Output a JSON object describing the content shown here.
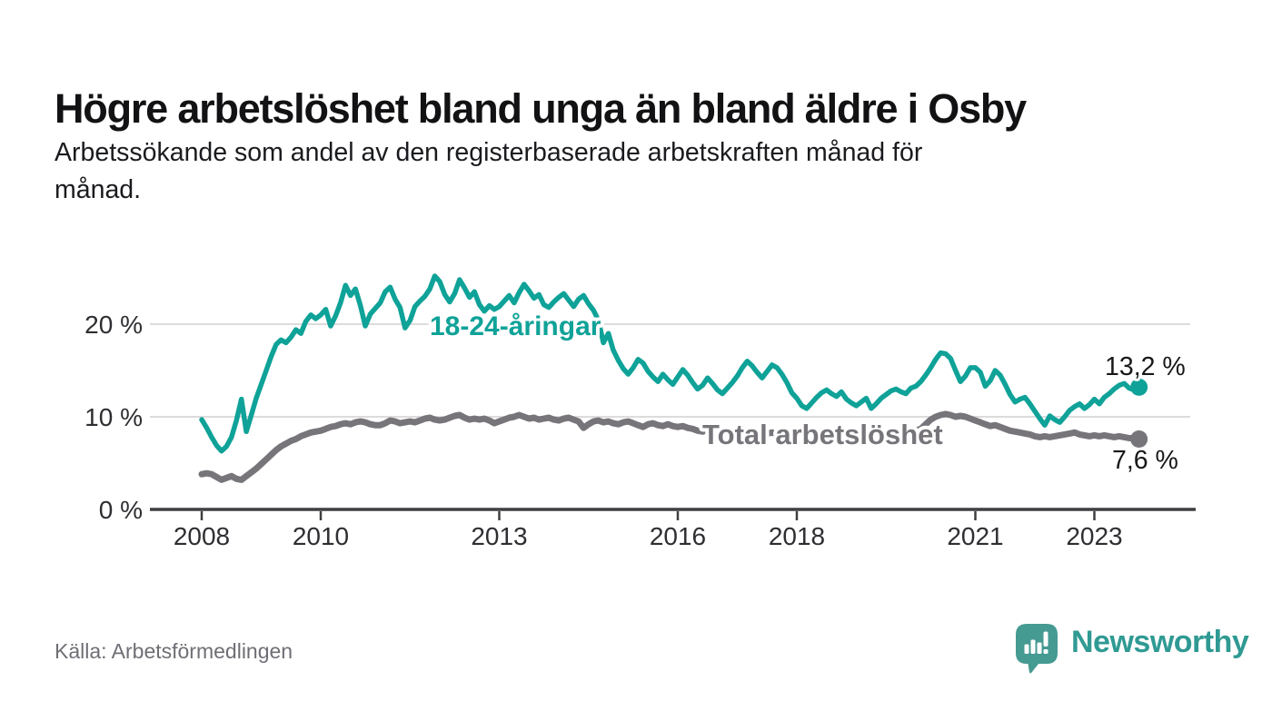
{
  "title": "Högre arbetslöshet bland unga än bland äldre i Osby",
  "subtitle_lines": [
    "Arbetssökande som andel av den registerbaserade arbetskraften månad för",
    "månad."
  ],
  "source": "Källa: Arbetsförmedlingen",
  "logo": {
    "brand": "Newsworthy"
  },
  "colors": {
    "young": "#0fa298",
    "total": "#77757a",
    "grid": "#dcdcdc",
    "axis": "#3f3f42",
    "tick_label": "#2e2e32",
    "value_label": "#17181a",
    "logo_bubble": "#459a92",
    "logo_text": "#2f9a93",
    "background": "#ffffff"
  },
  "chart_data": {
    "type": "line",
    "title": "Högre arbetslöshet bland unga än bland äldre i Osby",
    "subtitle": "Arbetssökande som andel av den registerbaserade arbetskraften månad för månad.",
    "x_start_year": 2008,
    "x_start_month": 1,
    "x_step_months": 1,
    "x_end_year": 2023,
    "x_end_month": 10,
    "ylim": [
      0,
      26.5
    ],
    "grid": "horizontal-only",
    "legend_position": "inline-labels",
    "yticks": [
      {
        "value": 0,
        "label": "0 %"
      },
      {
        "value": 10,
        "label": "10 %"
      },
      {
        "value": 20,
        "label": "20 %"
      }
    ],
    "xticks": [
      {
        "year": 2008,
        "label": "2008"
      },
      {
        "year": 2010,
        "label": "2010"
      },
      {
        "year": 2013,
        "label": "2013"
      },
      {
        "year": 2016,
        "label": "2016"
      },
      {
        "year": 2018,
        "label": "2018"
      },
      {
        "year": 2021,
        "label": "2021"
      },
      {
        "year": 2023,
        "label": "2023"
      }
    ],
    "series": [
      {
        "id": "young",
        "name": "18-24-åringar",
        "color": "#0fa298",
        "last_value": 13.2,
        "last_value_label": "13,2 %",
        "values": [
          9.7,
          8.8,
          7.8,
          6.9,
          6.3,
          6.8,
          7.8,
          9.6,
          11.9,
          8.4,
          10.2,
          12.0,
          13.5,
          15.0,
          16.5,
          17.8,
          18.3,
          18.0,
          18.6,
          19.4,
          19.0,
          20.3,
          21.0,
          20.6,
          21.0,
          21.6,
          19.8,
          20.9,
          22.3,
          24.2,
          23.1,
          23.8,
          22.0,
          19.8,
          21.1,
          21.7,
          22.3,
          23.5,
          24.0,
          22.7,
          21.8,
          19.6,
          20.4,
          21.9,
          22.5,
          23.0,
          23.8,
          25.2,
          24.6,
          23.2,
          22.4,
          23.3,
          24.8,
          23.9,
          22.9,
          23.5,
          22.1,
          21.4,
          22.0,
          21.6,
          21.9,
          22.5,
          23.1,
          22.3,
          23.4,
          24.3,
          23.6,
          22.8,
          23.2,
          22.1,
          21.8,
          22.4,
          22.9,
          23.3,
          22.6,
          21.9,
          22.7,
          23.1,
          22.2,
          21.5,
          20.4,
          18.0,
          19.0,
          17.2,
          16.1,
          15.2,
          14.6,
          15.3,
          16.2,
          15.8,
          14.9,
          14.3,
          13.8,
          14.6,
          14.0,
          13.5,
          14.3,
          15.1,
          14.5,
          13.7,
          13.0,
          13.4,
          14.2,
          13.6,
          12.9,
          12.5,
          13.1,
          13.7,
          14.4,
          15.3,
          16.0,
          15.5,
          14.8,
          14.2,
          14.9,
          15.6,
          15.3,
          14.6,
          13.7,
          12.6,
          12.0,
          11.2,
          10.9,
          11.5,
          12.1,
          12.6,
          12.9,
          12.5,
          12.2,
          12.7,
          11.9,
          11.5,
          11.2,
          11.6,
          12.0,
          10.9,
          11.4,
          12.0,
          12.4,
          12.8,
          13.0,
          12.7,
          12.5,
          13.1,
          13.3,
          13.8,
          14.5,
          15.3,
          16.2,
          16.9,
          16.8,
          16.3,
          15.0,
          13.8,
          14.4,
          15.3,
          15.3,
          14.8,
          13.3,
          13.9,
          15.0,
          14.5,
          13.5,
          12.4,
          11.6,
          11.9,
          12.1,
          11.4,
          10.6,
          9.8,
          9.1,
          10.1,
          9.7,
          9.4,
          10.0,
          10.7,
          11.1,
          11.4,
          10.9,
          11.3,
          11.9,
          11.4,
          12.1,
          12.5,
          13.0,
          13.4,
          13.6,
          13.1,
          12.9,
          13.2
        ]
      },
      {
        "id": "total",
        "name": "Total arbetslöshet",
        "color": "#77757a",
        "last_value": 7.6,
        "last_value_label": "7,6 %",
        "values": [
          3.8,
          3.9,
          3.8,
          3.5,
          3.2,
          3.4,
          3.6,
          3.3,
          3.2,
          3.6,
          4.0,
          4.4,
          4.9,
          5.4,
          5.9,
          6.4,
          6.8,
          7.1,
          7.4,
          7.6,
          7.9,
          8.1,
          8.3,
          8.4,
          8.5,
          8.7,
          8.9,
          9.0,
          9.2,
          9.3,
          9.2,
          9.4,
          9.5,
          9.4,
          9.2,
          9.1,
          9.1,
          9.3,
          9.6,
          9.5,
          9.3,
          9.4,
          9.5,
          9.4,
          9.6,
          9.8,
          9.9,
          9.7,
          9.6,
          9.7,
          9.9,
          10.1,
          10.2,
          9.9,
          9.7,
          9.8,
          9.7,
          9.8,
          9.6,
          9.3,
          9.5,
          9.7,
          9.9,
          10.0,
          10.2,
          10.0,
          9.8,
          9.9,
          9.7,
          9.8,
          9.9,
          9.7,
          9.6,
          9.8,
          9.9,
          9.7,
          9.5,
          8.8,
          9.2,
          9.5,
          9.6,
          9.4,
          9.5,
          9.3,
          9.2,
          9.4,
          9.5,
          9.3,
          9.1,
          8.9,
          9.2,
          9.3,
          9.1,
          9.0,
          9.2,
          9.0,
          8.9,
          9.0,
          8.8,
          8.7,
          8.5,
          8.4,
          8.6,
          8.7,
          8.5,
          8.3,
          8.4,
          8.2,
          8.2,
          8.3,
          8.4,
          8.2,
          8.1,
          8.0,
          8.2,
          8.3,
          8.1,
          8.0,
          8.1,
          8.0,
          7.9,
          8.0,
          8.1,
          7.9,
          7.8,
          7.7,
          7.9,
          8.0,
          7.8,
          7.7,
          7.8,
          7.9,
          7.9,
          8.0,
          8.1,
          8.0,
          7.9,
          8.0,
          8.2,
          8.3,
          8.2,
          8.1,
          8.2,
          8.3,
          8.5,
          8.7,
          9.2,
          9.7,
          10.0,
          10.2,
          10.3,
          10.2,
          10.0,
          10.1,
          10.0,
          9.8,
          9.6,
          9.4,
          9.2,
          9.0,
          9.1,
          8.9,
          8.7,
          8.5,
          8.4,
          8.3,
          8.2,
          8.1,
          7.9,
          7.8,
          7.9,
          7.8,
          7.9,
          8.0,
          8.1,
          8.2,
          8.3,
          8.1,
          8.0,
          7.9,
          8.0,
          7.9,
          8.0,
          7.9,
          7.8,
          7.9,
          7.8,
          7.7,
          7.7,
          7.6
        ]
      }
    ]
  }
}
